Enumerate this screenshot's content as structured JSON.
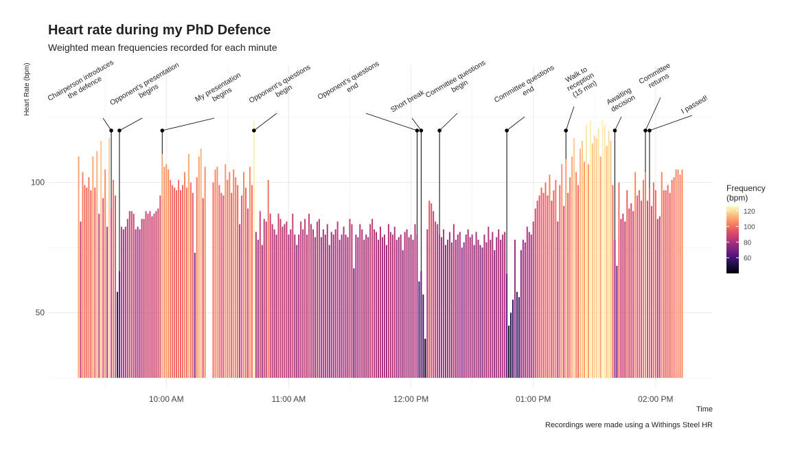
{
  "chart_data": {
    "type": "bar",
    "title": "Heart rate during my PhD Defence",
    "subtitle": "Weighted mean frequencies recorded for each minute",
    "y_label": "Heart Rate (bpm)",
    "x_label": "Time",
    "caption": "Recordings were made using a Withings Steel HR",
    "xlim": [
      542,
      868
    ],
    "xticks": [
      {
        "value": 600,
        "label": "10:00 AM"
      },
      {
        "value": 660,
        "label": "11:00 AM"
      },
      {
        "value": 720,
        "label": "12:00 PM"
      },
      {
        "value": 780,
        "label": "01:00 PM"
      },
      {
        "value": 840,
        "label": "02:00 PM"
      }
    ],
    "x_minor_ticks": [
      570,
      630,
      690,
      750,
      810
    ],
    "ylim": [
      25,
      145
    ],
    "yticks": [
      50,
      100
    ],
    "y_minor_ticks": [
      25,
      75,
      125
    ],
    "grid": true,
    "color_scale": {
      "title": [
        "Frequency",
        "(bpm)"
      ],
      "limits": [
        40,
        126
      ],
      "ticks": [
        60,
        80,
        100,
        120
      ],
      "colors": [
        "#000004",
        "#1c1044",
        "#4f127b",
        "#812581",
        "#b5367a",
        "#e55064",
        "#fb8761",
        "#fec287",
        "#fcfdbf"
      ]
    },
    "x": [
      557,
      558,
      559,
      560,
      561,
      562,
      563,
      564,
      565,
      566,
      567,
      568,
      569,
      570,
      571,
      572,
      573,
      574,
      575,
      576,
      577,
      578,
      579,
      580,
      581,
      582,
      583,
      584,
      585,
      586,
      587,
      588,
      589,
      590,
      591,
      592,
      593,
      594,
      595,
      596,
      597,
      598,
      599,
      600,
      601,
      602,
      603,
      604,
      605,
      606,
      607,
      608,
      609,
      610,
      611,
      612,
      613,
      614,
      615,
      616,
      617,
      618,
      619,
      623,
      624,
      625,
      626,
      627,
      628,
      629,
      630,
      631,
      632,
      633,
      634,
      635,
      636,
      637,
      638,
      639,
      640,
      641,
      642,
      643,
      644,
      645,
      646,
      647,
      648,
      649,
      650,
      651,
      652,
      653,
      654,
      655,
      656,
      657,
      658,
      659,
      660,
      661,
      662,
      663,
      664,
      665,
      666,
      667,
      668,
      669,
      670,
      671,
      672,
      673,
      674,
      675,
      676,
      677,
      678,
      679,
      680,
      681,
      682,
      683,
      684,
      685,
      686,
      687,
      688,
      689,
      690,
      691,
      692,
      693,
      694,
      695,
      696,
      697,
      698,
      699,
      700,
      701,
      702,
      703,
      704,
      705,
      706,
      707,
      708,
      709,
      710,
      711,
      712,
      713,
      714,
      715,
      716,
      717,
      718,
      719,
      720,
      721,
      722,
      723,
      724,
      725,
      726,
      727,
      728,
      729,
      730,
      731,
      732,
      733,
      734,
      735,
      736,
      737,
      738,
      739,
      740,
      741,
      742,
      743,
      744,
      745,
      746,
      747,
      748,
      749,
      750,
      751,
      752,
      753,
      754,
      755,
      756,
      757,
      758,
      759,
      760,
      761,
      762,
      763,
      764,
      765,
      766,
      767,
      768,
      769,
      770,
      771,
      772,
      773,
      774,
      775,
      776,
      777,
      778,
      779,
      780,
      781,
      782,
      783,
      784,
      785,
      786,
      787,
      788,
      789,
      790,
      791,
      792,
      793,
      794,
      795,
      796,
      797,
      798,
      799,
      800,
      801,
      802,
      803,
      804,
      805,
      806,
      807,
      808,
      809,
      810,
      811,
      812,
      813,
      814,
      815,
      816,
      817,
      818,
      819,
      820,
      821,
      822,
      823,
      824,
      825,
      826,
      827,
      828,
      829,
      830,
      831,
      832,
      833,
      834,
      835,
      836,
      837,
      838,
      839,
      840,
      841,
      842,
      843,
      844,
      845,
      846,
      847,
      848,
      849,
      850,
      851,
      852,
      853
    ],
    "values": [
      110,
      85,
      104,
      99,
      98,
      102,
      97,
      110,
      98,
      112,
      88,
      116,
      94,
      105,
      83,
      117,
      90,
      101,
      95,
      58,
      66,
      83,
      82,
      83,
      86,
      89,
      89,
      88,
      82,
      83,
      82,
      86,
      86,
      89,
      88,
      89,
      87,
      88,
      89,
      90,
      95,
      111,
      106,
      107,
      105,
      101,
      99,
      98,
      97,
      101,
      97,
      99,
      104,
      98,
      111,
      100,
      96,
      73,
      102,
      110,
      113,
      94,
      106,
      100,
      105,
      106,
      99,
      96,
      95,
      107,
      101,
      104,
      96,
      105,
      102,
      99,
      84,
      95,
      104,
      98,
      90,
      106,
      99,
      124,
      81,
      78,
      89,
      76,
      86,
      85,
      101,
      88,
      84,
      82,
      80,
      88,
      86,
      83,
      84,
      85,
      80,
      82,
      88,
      80,
      76,
      80,
      85,
      82,
      86,
      80,
      88,
      84,
      82,
      79,
      85,
      86,
      79,
      82,
      80,
      84,
      76,
      81,
      80,
      82,
      85,
      78,
      80,
      83,
      80,
      79,
      86,
      84,
      67,
      80,
      79,
      84,
      82,
      78,
      80,
      79,
      84,
      86,
      82,
      81,
      78,
      83,
      79,
      80,
      76,
      84,
      81,
      80,
      83,
      78,
      79,
      80,
      74,
      81,
      82,
      79,
      80,
      78,
      84,
      80,
      62,
      66,
      57,
      40,
      82,
      93,
      92,
      89,
      85,
      84,
      80,
      79,
      82,
      76,
      78,
      81,
      77,
      84,
      78,
      80,
      81,
      75,
      77,
      80,
      82,
      79,
      80,
      76,
      81,
      78,
      76,
      75,
      80,
      77,
      83,
      78,
      81,
      74,
      79,
      82,
      78,
      80,
      81,
      65,
      45,
      50,
      55,
      78,
      58,
      56,
      74,
      78,
      77,
      83,
      81,
      80,
      85,
      90,
      93,
      95,
      98,
      96,
      100,
      95,
      103,
      93,
      97,
      101,
      85,
      99,
      107,
      91,
      109,
      96,
      102,
      110,
      117,
      104,
      99,
      113,
      116,
      108,
      122,
      107,
      124,
      115,
      118,
      117,
      121,
      110,
      124,
      122,
      114,
      120,
      116,
      99,
      78,
      68,
      100,
      86,
      88,
      85,
      97,
      90,
      92,
      89,
      104,
      95,
      97,
      93,
      101,
      104,
      93,
      98,
      91,
      100,
      97,
      86,
      87,
      104,
      97,
      97,
      99,
      96,
      101,
      102,
      105,
      105,
      103,
      105
    ],
    "annotations": [
      {
        "x": 573,
        "label": [
          "Chairperson introduces",
          "the defence"
        ]
      },
      {
        "x": 577,
        "label": [
          "Opponent's presentation",
          "begins"
        ]
      },
      {
        "x": 598,
        "label": [
          "My presentation",
          "begins"
        ]
      },
      {
        "x": 643,
        "label": [
          "Opponent's questions",
          "begin"
        ]
      },
      {
        "x": 723,
        "label": [
          "Opponent's questions",
          "end"
        ]
      },
      {
        "x": 725,
        "label": [
          "Short break"
        ]
      },
      {
        "x": 734,
        "label": [
          "Committee questions",
          "begin"
        ]
      },
      {
        "x": 767,
        "label": [
          "Committee questions",
          "end"
        ]
      },
      {
        "x": 796,
        "label": [
          "Walk to",
          "reception",
          "(15 min)"
        ]
      },
      {
        "x": 820,
        "label": [
          "Awaiting",
          "decision"
        ]
      },
      {
        "x": 835,
        "label": [
          "Committee",
          "returns"
        ]
      },
      {
        "x": 837,
        "label": [
          "I passed!"
        ]
      }
    ]
  }
}
